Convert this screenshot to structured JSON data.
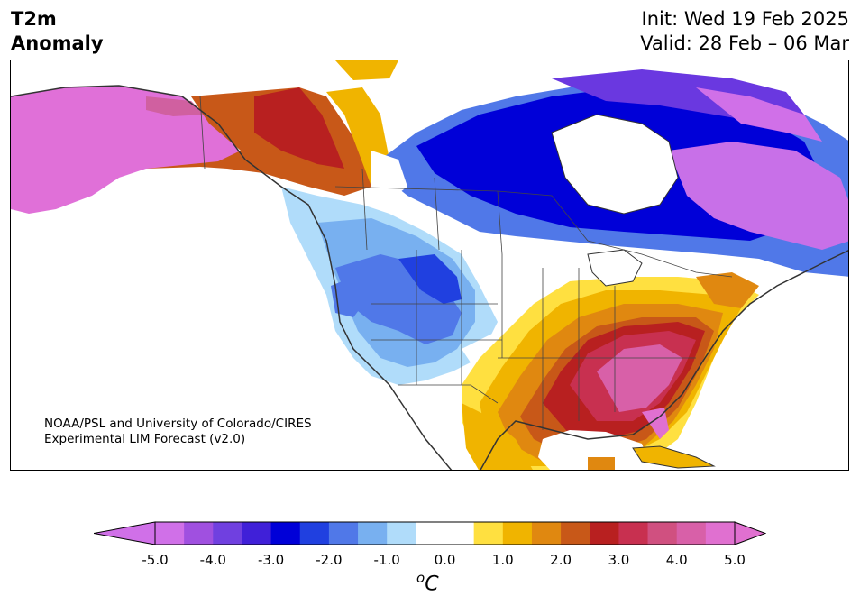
{
  "header": {
    "title_line1": "T2m",
    "title_line2": "Anomaly",
    "init_text": "Init: Wed 19 Feb 2025",
    "valid_text": "Valid: 28 Feb – 06 Mar"
  },
  "credit": {
    "line1": "NOAA/PSL and University of Colorado/CIRES",
    "line2": "Experimental LIM Forecast (v2.0)"
  },
  "colorbar": {
    "ticks": [
      "-5.0",
      "-4.0",
      "-3.0",
      "-2.0",
      "-1.0",
      "0.0",
      "1.0",
      "2.0",
      "3.0",
      "4.0",
      "5.0"
    ],
    "unit_sup": "o",
    "unit_main": "C",
    "colors": [
      "#d070e8",
      "#a050e0",
      "#7040e0",
      "#4020d8",
      "#0000d8",
      "#2040e0",
      "#5078e8",
      "#78b0f0",
      "#b0dcfa",
      "#ffffff",
      "#ffffff",
      "#ffe040",
      "#f0b400",
      "#e08810",
      "#c85818",
      "#b82020",
      "#c83050",
      "#d05080",
      "#d860a8",
      "#e070d0"
    ]
  },
  "map": {
    "palette": {
      "extreme_warm": "#e070d8",
      "very_warm": "#d060a0",
      "warm_red": "#b82028",
      "warm_orange": "#d06010",
      "mild_warm": "#f0b000",
      "slight_warm": "#ffe050",
      "neutral": "#ffffff",
      "slight_cool": "#b0dcfa",
      "mild_cool": "#78b0f0",
      "cool": "#5078e8",
      "cold": "#0000d8",
      "very_cold": "#6a38e0",
      "extreme_cold": "#c870e8",
      "coast": "#333333"
    }
  }
}
